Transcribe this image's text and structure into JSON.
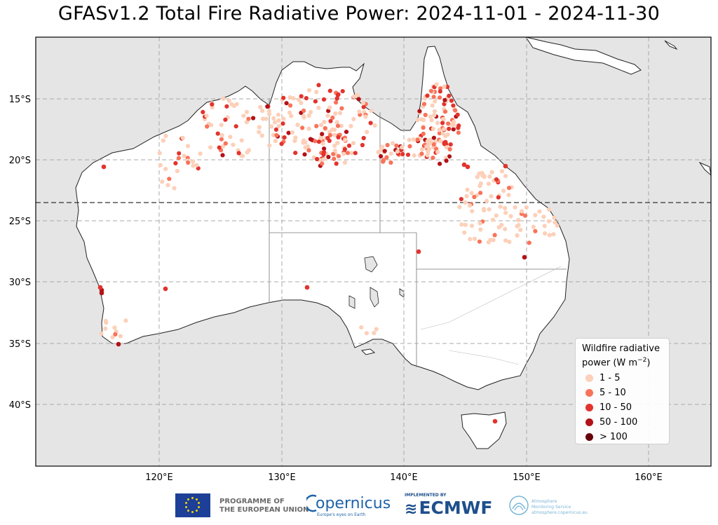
{
  "title": "GFASv1.2 Total Fire Radiative Power: 2024-11-01 - 2024-11-30",
  "map": {
    "region": "Australia",
    "lon_range": [
      110,
      165
    ],
    "lat_range": [
      -44.8,
      -9.8
    ],
    "x_ticks": [
      "120°E",
      "130°E",
      "140°E",
      "150°E",
      "160°E"
    ],
    "y_ticks": [
      "15°S",
      "20°S",
      "25°S",
      "30°S",
      "35°S",
      "40°S"
    ],
    "tropic_line": "Tropic of Capricorn (dashed)",
    "ocean_color": "#e5e5e5",
    "land_color": "#ffffff"
  },
  "legend": {
    "title_line1": "Wildfire radiative",
    "title_line2": "power (W m",
    "title_sup": "−2",
    "title_end": ")",
    "items": [
      {
        "label": "1 - 5",
        "color": "#fcd0b9"
      },
      {
        "label": "5 - 10",
        "color": "#f8735a"
      },
      {
        "label": "10 - 50",
        "color": "#e2332d"
      },
      {
        "label": "50 - 100",
        "color": "#b21218"
      },
      {
        "label": "> 100",
        "color": "#680009"
      }
    ]
  },
  "logos": {
    "eu_line1": "PROGRAMME OF",
    "eu_line2": "THE EUROPEAN UNION",
    "copernicus": "opernicus",
    "copernicus_tagline": "Europe's eyes on Earth",
    "ecmwf_pre": "IMPLEMENTED BY",
    "ecmwf": "ECMWF",
    "cams_line1": "Atmosphere",
    "cams_line2": "Monitoring Service",
    "cams_line3": "atmosphere.copernicus.eu"
  }
}
